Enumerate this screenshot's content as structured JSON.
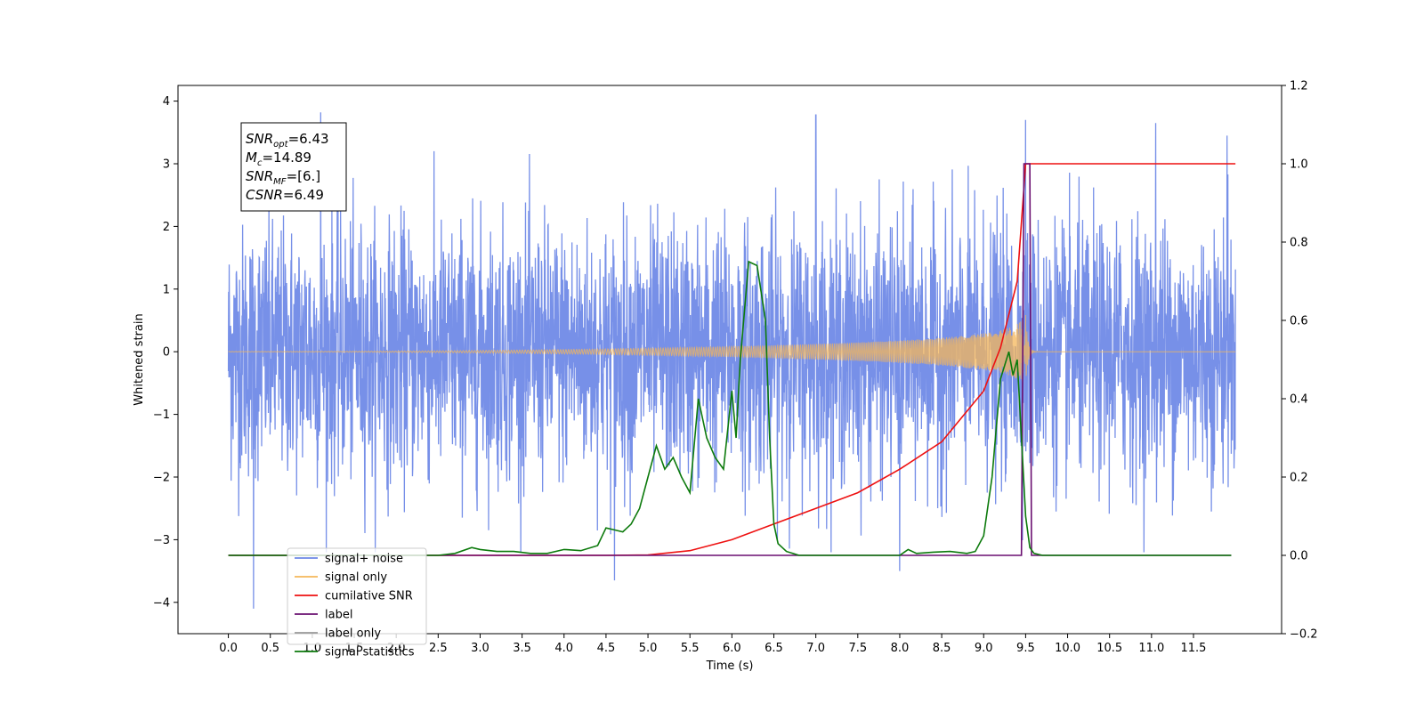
{
  "chart_data": {
    "type": "line",
    "title": "",
    "xlabel": "Time (s)",
    "ylabel": "Whitened strain",
    "ylabel_right": "",
    "xlim": [
      -0.6,
      12.55
    ],
    "ylim": [
      -4.5,
      4.25
    ],
    "ylim_right": [
      -0.2,
      1.2
    ],
    "x_ticks": [
      0.0,
      0.5,
      1.0,
      1.5,
      2.0,
      2.5,
      3.0,
      3.5,
      4.0,
      4.5,
      5.0,
      5.5,
      6.0,
      6.5,
      7.0,
      7.5,
      8.0,
      8.5,
      9.0,
      9.5,
      10.0,
      10.5,
      11.0,
      11.5
    ],
    "x_tick_labels": [
      "0.0",
      "0.5",
      "1.0",
      "1.5",
      "2.0",
      "2.5",
      "3.0",
      "3.5",
      "4.0",
      "4.5",
      "5.0",
      "5.5",
      "6.0",
      "6.5",
      "7.0",
      "7.5",
      "8.0",
      "8.5",
      "9.0",
      "9.5",
      "10.0",
      "10.5",
      "11.0",
      "11.5"
    ],
    "y_ticks": [
      -4,
      -3,
      -2,
      -1,
      0,
      1,
      2,
      3,
      4
    ],
    "y_tick_labels": [
      "−4",
      "−3",
      "−2",
      "−1",
      "0",
      "1",
      "2",
      "3",
      "4"
    ],
    "y_ticks_right": [
      -0.2,
      0.0,
      0.2,
      0.4,
      0.6,
      0.8,
      1.0,
      1.2
    ],
    "y_tick_labels_right": [
      "−0.2",
      "0.0",
      "0.2",
      "0.4",
      "0.6",
      "0.8",
      "1.0",
      "1.2"
    ],
    "grid": false,
    "legend_position": "lower-left",
    "annotation": {
      "lines": [
        {
          "base": "SNR",
          "sub": "opt",
          "value": "=6.43"
        },
        {
          "base": "M",
          "sub": "c",
          "value": "=14.89"
        },
        {
          "base": "SNR",
          "sub": "MF",
          "value": "=[6.]"
        },
        {
          "base": "CSNR",
          "sub": "",
          "value": "=6.49"
        }
      ]
    },
    "series": [
      {
        "name": "signal+ noise",
        "axis": "left",
        "color": "#6b87e6",
        "kind": "noise",
        "x_range": [
          0.0,
          12.0
        ],
        "amplitude_typical": 1.0,
        "peak_points": [
          [
            0.3,
            -4.1
          ],
          [
            1.1,
            3.82
          ],
          [
            4.6,
            -3.65
          ],
          [
            7.0,
            3.78
          ],
          [
            9.5,
            3.7
          ],
          [
            11.05,
            3.65
          ],
          [
            11.9,
            3.45
          ],
          [
            8.0,
            -3.5
          ]
        ]
      },
      {
        "name": "signal only",
        "axis": "left",
        "color": "#f5b75a",
        "kind": "chirp",
        "x_range": [
          0.0,
          12.0
        ],
        "merger_time": 9.5,
        "peak_amplitude": 0.6
      },
      {
        "name": "cumilative SNR",
        "axis": "right",
        "color": "#ee1111",
        "x": [
          0.0,
          1.0,
          2.0,
          3.0,
          4.0,
          4.5,
          5.0,
          5.5,
          6.0,
          6.5,
          7.0,
          7.5,
          8.0,
          8.5,
          9.0,
          9.2,
          9.4,
          9.5,
          12.0
        ],
        "y": [
          0.0,
          0.0,
          0.0,
          0.0,
          0.0,
          0.0,
          0.001,
          0.012,
          0.04,
          0.08,
          0.12,
          0.16,
          0.22,
          0.29,
          0.42,
          0.53,
          0.7,
          1.0,
          1.0
        ]
      },
      {
        "name": "label",
        "axis": "right",
        "color": "#6a0f70",
        "x": [
          0.0,
          9.45,
          9.48,
          9.55,
          9.57,
          11.95
        ],
        "y": [
          0.0,
          0.0,
          1.0,
          1.0,
          0.0,
          0.0
        ]
      },
      {
        "name": "label only",
        "axis": "right",
        "color": "#9a9a9a",
        "x": [],
        "y": []
      },
      {
        "name": "signal statistics",
        "axis": "right",
        "color": "#0c7a0c",
        "x": [
          0.0,
          1.0,
          2.0,
          2.5,
          2.7,
          2.9,
          3.0,
          3.2,
          3.4,
          3.6,
          3.8,
          4.0,
          4.2,
          4.4,
          4.5,
          4.6,
          4.7,
          4.8,
          4.9,
          5.0,
          5.1,
          5.2,
          5.3,
          5.4,
          5.5,
          5.6,
          5.7,
          5.8,
          5.9,
          6.0,
          6.05,
          6.1,
          6.2,
          6.3,
          6.4,
          6.45,
          6.5,
          6.55,
          6.65,
          6.8,
          7.0,
          8.0,
          8.1,
          8.2,
          8.4,
          8.6,
          8.8,
          8.9,
          9.0,
          9.1,
          9.2,
          9.3,
          9.35,
          9.4,
          9.45,
          9.5,
          9.55,
          9.6,
          9.7,
          10.0,
          11.95
        ],
        "y": [
          0.0,
          0.0,
          0.0,
          0.0,
          0.005,
          0.02,
          0.015,
          0.01,
          0.01,
          0.005,
          0.005,
          0.015,
          0.012,
          0.025,
          0.07,
          0.065,
          0.06,
          0.08,
          0.12,
          0.2,
          0.28,
          0.22,
          0.25,
          0.2,
          0.16,
          0.4,
          0.3,
          0.25,
          0.22,
          0.42,
          0.3,
          0.5,
          0.75,
          0.74,
          0.6,
          0.3,
          0.08,
          0.03,
          0.01,
          0.0,
          0.0,
          0.0,
          0.015,
          0.005,
          0.008,
          0.01,
          0.005,
          0.01,
          0.05,
          0.2,
          0.45,
          0.52,
          0.46,
          0.5,
          0.3,
          0.1,
          0.02,
          0.005,
          0.0,
          0.0,
          0.0
        ]
      }
    ]
  }
}
